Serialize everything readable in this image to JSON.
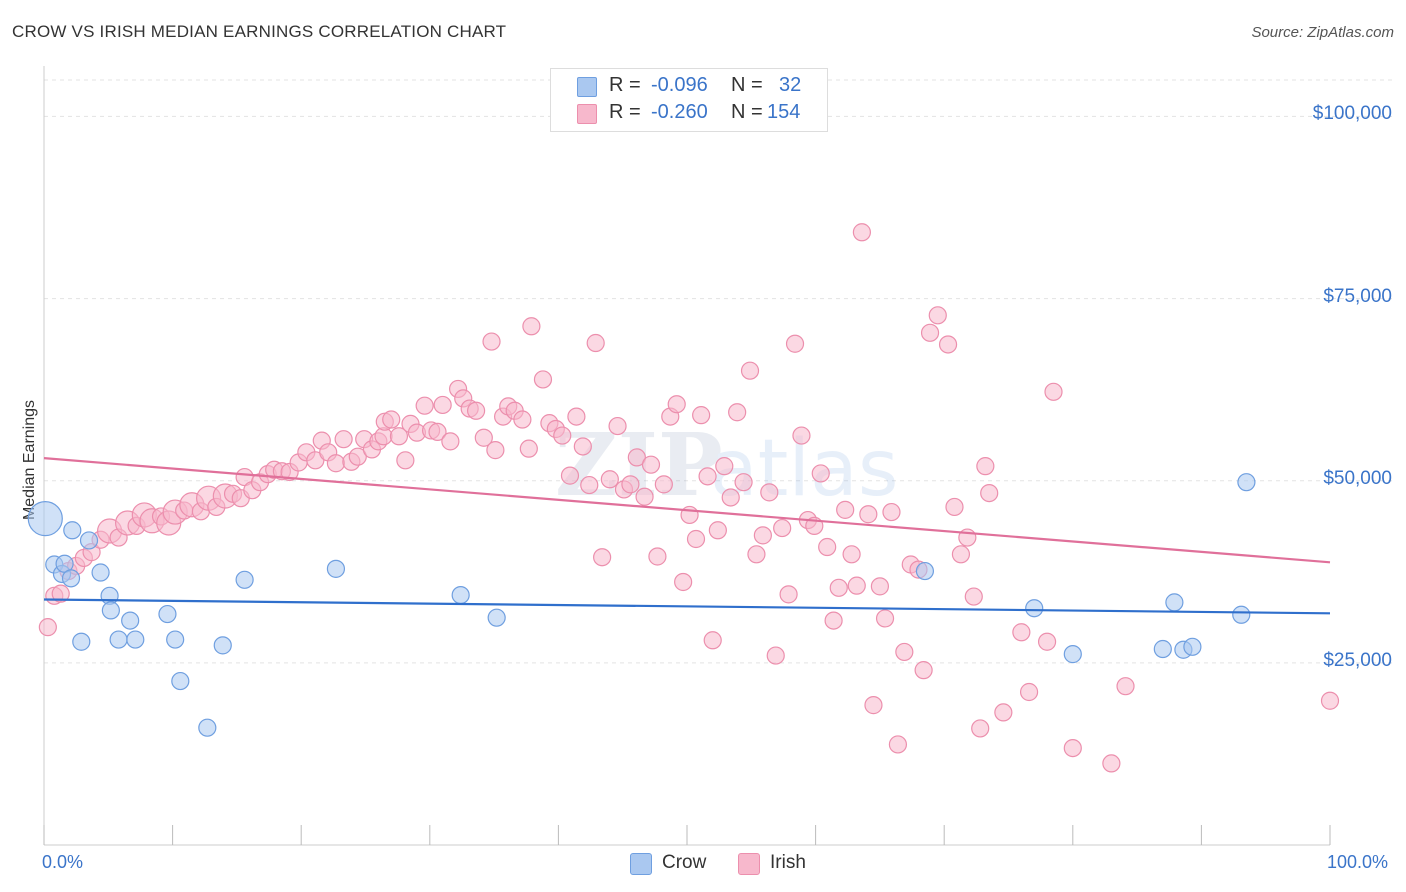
{
  "header": {
    "title": "CROW VS IRISH MEDIAN EARNINGS CORRELATION CHART",
    "source": "Source: ZipAtlas.com"
  },
  "legend": {
    "rows": [
      {
        "r_label": "R =",
        "r_value": "-0.096",
        "n_label": "N =",
        "n_value": "32",
        "color": "#aac8f0"
      },
      {
        "r_label": "R =",
        "r_value": "-0.260",
        "n_label": "N =",
        "n_value": "154",
        "color": "#f7b8cc"
      }
    ],
    "bottom": [
      {
        "label": "Crow",
        "color": "#aac8f0"
      },
      {
        "label": "Irish",
        "color": "#f7b8cc"
      }
    ]
  },
  "colors": {
    "crow_fill": "#aac8f0",
    "crow_stroke": "#6f9fe0",
    "crow_line": "#2f6fcc",
    "irish_fill": "#f7b8cc",
    "irish_stroke": "#ec8fad",
    "irish_line": "#e0709a",
    "axis_text": "#3a74c9",
    "grid": "#e3e3e3"
  },
  "chart_data": {
    "type": "scatter",
    "title": "CROW VS IRISH MEDIAN EARNINGS CORRELATION CHART",
    "xlabel": "",
    "ylabel": "Median Earnings",
    "xlim": [
      0,
      100
    ],
    "ylim": [
      0,
      105000
    ],
    "x_tick_labels": [
      "0.0%",
      "100.0%"
    ],
    "y_ticks": [
      25000,
      50000,
      75000,
      100000
    ],
    "y_tick_labels": [
      "$25,000",
      "$50,000",
      "$75,000",
      "$100,000"
    ],
    "grid": true,
    "legend_placement": "top-center",
    "series": [
      {
        "name": "Crow",
        "r": -0.096,
        "n": 32,
        "trend": {
          "y_at_0": 33700,
          "y_at_100": 31800
        },
        "points": [
          [
            0.1,
            44800,
            3
          ],
          [
            0.8,
            38500,
            1
          ],
          [
            1.4,
            37200,
            1
          ],
          [
            1.6,
            38600,
            1
          ],
          [
            2.1,
            36600,
            1
          ],
          [
            2.2,
            43200,
            1
          ],
          [
            2.9,
            27900,
            1
          ],
          [
            3.5,
            41800,
            1
          ],
          [
            4.4,
            37400,
            1
          ],
          [
            5.1,
            34200,
            1
          ],
          [
            5.2,
            32200,
            1
          ],
          [
            5.8,
            28200,
            1
          ],
          [
            6.7,
            30800,
            1
          ],
          [
            7.1,
            28200,
            1
          ],
          [
            9.6,
            31700,
            1
          ],
          [
            10.2,
            28200,
            1
          ],
          [
            10.6,
            22500,
            1
          ],
          [
            12.7,
            16100,
            1
          ],
          [
            13.9,
            27400,
            1
          ],
          [
            15.6,
            36400,
            1
          ],
          [
            22.7,
            37900,
            1
          ],
          [
            32.4,
            34300,
            1
          ],
          [
            35.2,
            31200,
            1
          ],
          [
            68.5,
            37600,
            1
          ],
          [
            77.0,
            32500,
            1
          ],
          [
            80.0,
            26200,
            1
          ],
          [
            87.0,
            26900,
            1
          ],
          [
            87.9,
            33300,
            1
          ],
          [
            88.6,
            26800,
            1
          ],
          [
            89.3,
            27200,
            1
          ],
          [
            93.1,
            31600,
            1
          ],
          [
            93.5,
            49800,
            1
          ]
        ]
      },
      {
        "name": "Irish",
        "r": -0.26,
        "n": 154,
        "trend": {
          "y_at_0": 53100,
          "y_at_100": 38800
        },
        "points": [
          [
            0.3,
            29900,
            1
          ],
          [
            0.8,
            34200,
            1
          ],
          [
            1.3,
            34500,
            1
          ],
          [
            1.9,
            37600,
            1
          ],
          [
            2.5,
            38300,
            1
          ],
          [
            3.1,
            39400,
            1
          ],
          [
            3.7,
            40200,
            1
          ],
          [
            4.4,
            41900,
            1
          ],
          [
            5.1,
            43100,
            2
          ],
          [
            5.8,
            42200,
            1
          ],
          [
            6.5,
            44200,
            2
          ],
          [
            7.2,
            43800,
            1
          ],
          [
            7.8,
            45300,
            2
          ],
          [
            8.4,
            44500,
            2
          ],
          [
            9.1,
            45100,
            1
          ],
          [
            9.7,
            44200,
            2
          ],
          [
            10.2,
            45700,
            2
          ],
          [
            10.9,
            45900,
            1
          ],
          [
            11.5,
            46700,
            2
          ],
          [
            12.2,
            45800,
            1
          ],
          [
            12.8,
            47600,
            2
          ],
          [
            13.4,
            46400,
            1
          ],
          [
            14.1,
            47900,
            2
          ],
          [
            14.7,
            48200,
            1
          ],
          [
            15.3,
            47600,
            1
          ],
          [
            15.6,
            50500,
            1
          ],
          [
            16.2,
            48700,
            1
          ],
          [
            16.8,
            49800,
            1
          ],
          [
            17.4,
            50900,
            1
          ],
          [
            17.9,
            51500,
            1
          ],
          [
            18.5,
            51300,
            1
          ],
          [
            19.1,
            51200,
            1
          ],
          [
            19.8,
            52500,
            1
          ],
          [
            20.4,
            53900,
            1
          ],
          [
            21.1,
            52800,
            1
          ],
          [
            21.6,
            55500,
            1
          ],
          [
            22.1,
            53900,
            1
          ],
          [
            22.7,
            52400,
            1
          ],
          [
            23.3,
            55700,
            1
          ],
          [
            23.9,
            52600,
            1
          ],
          [
            24.4,
            53300,
            1
          ],
          [
            24.9,
            55700,
            1
          ],
          [
            25.5,
            54300,
            1
          ],
          [
            26.0,
            55400,
            1
          ],
          [
            26.4,
            56100,
            1
          ],
          [
            26.5,
            58100,
            1
          ],
          [
            27.0,
            58400,
            1
          ],
          [
            27.6,
            56100,
            1
          ],
          [
            28.1,
            52800,
            1
          ],
          [
            28.5,
            57800,
            1
          ],
          [
            29.0,
            56600,
            1
          ],
          [
            29.6,
            60300,
            1
          ],
          [
            30.1,
            56900,
            1
          ],
          [
            30.6,
            56700,
            1
          ],
          [
            31.0,
            60400,
            1
          ],
          [
            31.6,
            55400,
            1
          ],
          [
            32.2,
            62600,
            1
          ],
          [
            32.6,
            61300,
            1
          ],
          [
            33.1,
            59900,
            1
          ],
          [
            33.6,
            59600,
            1
          ],
          [
            34.2,
            55900,
            1
          ],
          [
            34.8,
            69100,
            1
          ],
          [
            35.1,
            54200,
            1
          ],
          [
            35.7,
            58800,
            1
          ],
          [
            36.1,
            60200,
            1
          ],
          [
            36.6,
            59600,
            1
          ],
          [
            37.2,
            58400,
            1
          ],
          [
            37.7,
            54400,
            1
          ],
          [
            37.9,
            71200,
            1
          ],
          [
            38.8,
            63900,
            1
          ],
          [
            39.3,
            57900,
            1
          ],
          [
            39.8,
            57100,
            1
          ],
          [
            40.3,
            56200,
            1
          ],
          [
            40.9,
            50700,
            1
          ],
          [
            41.4,
            58800,
            1
          ],
          [
            41.9,
            54700,
            1
          ],
          [
            42.4,
            49400,
            1
          ],
          [
            42.9,
            68900,
            1
          ],
          [
            43.4,
            39500,
            1
          ],
          [
            44.0,
            50200,
            1
          ],
          [
            44.6,
            57500,
            1
          ],
          [
            45.1,
            48800,
            1
          ],
          [
            45.6,
            49500,
            1
          ],
          [
            46.1,
            53200,
            1
          ],
          [
            46.7,
            47800,
            1
          ],
          [
            47.2,
            52200,
            1
          ],
          [
            47.7,
            39600,
            1
          ],
          [
            48.2,
            49500,
            1
          ],
          [
            48.7,
            58800,
            1
          ],
          [
            49.2,
            60500,
            1
          ],
          [
            49.7,
            36100,
            1
          ],
          [
            50.2,
            45300,
            1
          ],
          [
            50.7,
            42000,
            1
          ],
          [
            51.1,
            59000,
            1
          ],
          [
            51.6,
            50600,
            1
          ],
          [
            52.0,
            28100,
            1
          ],
          [
            52.4,
            43200,
            1
          ],
          [
            52.9,
            52000,
            1
          ],
          [
            53.4,
            47700,
            1
          ],
          [
            53.9,
            59400,
            1
          ],
          [
            54.4,
            49800,
            1
          ],
          [
            54.9,
            65100,
            1
          ],
          [
            55.4,
            39900,
            1
          ],
          [
            55.9,
            42500,
            1
          ],
          [
            56.4,
            48400,
            1
          ],
          [
            56.9,
            26000,
            1
          ],
          [
            57.4,
            43500,
            1
          ],
          [
            57.9,
            34400,
            1
          ],
          [
            58.4,
            68800,
            1
          ],
          [
            58.9,
            56200,
            1
          ],
          [
            59.4,
            44600,
            1
          ],
          [
            59.9,
            43800,
            1
          ],
          [
            60.4,
            51000,
            1
          ],
          [
            60.9,
            40900,
            1
          ],
          [
            61.4,
            30800,
            1
          ],
          [
            61.8,
            35300,
            1
          ],
          [
            62.3,
            46000,
            1
          ],
          [
            62.8,
            39900,
            1
          ],
          [
            63.2,
            35600,
            1
          ],
          [
            63.6,
            84100,
            1
          ],
          [
            64.1,
            45400,
            1
          ],
          [
            64.5,
            19200,
            1
          ],
          [
            65.0,
            35500,
            1
          ],
          [
            65.4,
            31100,
            1
          ],
          [
            65.9,
            45700,
            1
          ],
          [
            66.4,
            13800,
            1
          ],
          [
            66.9,
            26500,
            1
          ],
          [
            67.4,
            38500,
            1
          ],
          [
            68.0,
            37800,
            1
          ],
          [
            68.4,
            24000,
            1
          ],
          [
            68.9,
            70300,
            1
          ],
          [
            69.5,
            72700,
            1
          ],
          [
            70.3,
            68700,
            1
          ],
          [
            70.8,
            46400,
            1
          ],
          [
            71.3,
            39900,
            1
          ],
          [
            71.8,
            42200,
            1
          ],
          [
            72.3,
            34100,
            1
          ],
          [
            72.8,
            16000,
            1
          ],
          [
            73.2,
            52000,
            1
          ],
          [
            73.5,
            48300,
            1
          ],
          [
            74.6,
            18200,
            1
          ],
          [
            76.0,
            29200,
            1
          ],
          [
            76.6,
            21000,
            1
          ],
          [
            78.0,
            27900,
            1
          ],
          [
            78.5,
            62200,
            1
          ],
          [
            80.0,
            13300,
            1
          ],
          [
            83.0,
            11200,
            1
          ],
          [
            84.1,
            21800,
            1
          ],
          [
            100.0,
            19800,
            1
          ]
        ]
      }
    ]
  }
}
